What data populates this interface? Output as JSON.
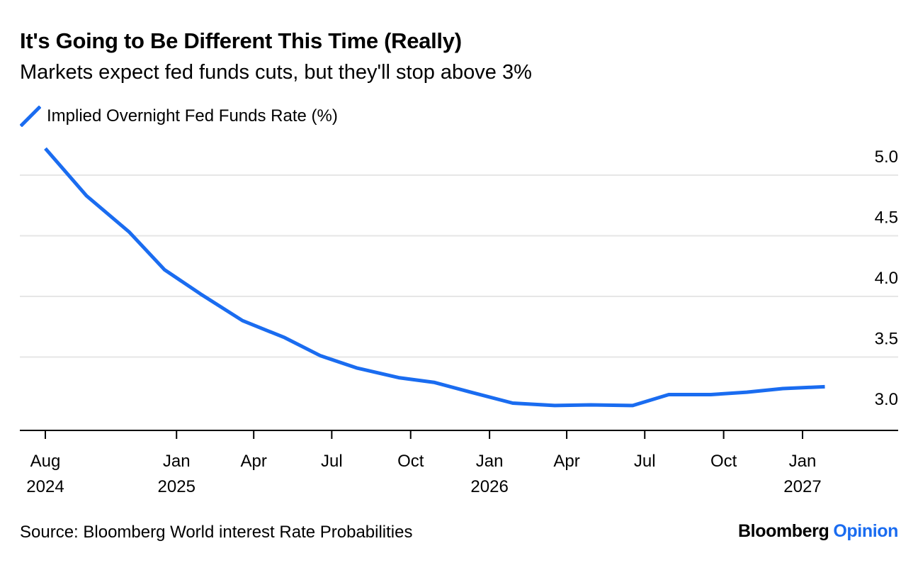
{
  "colors": {
    "series": "#1a6cf0",
    "grid": "#e6e6e6",
    "axis": "#000000",
    "brand_accent": "#1a6cf0"
  },
  "header": {
    "title": "It's Going to Be Different This Time (Really)",
    "subtitle": "Markets expect fed funds cuts, but they'll stop above 3%"
  },
  "footer": {
    "source": "Source: Bloomberg World interest Rate Probabilities",
    "brand_main": "Bloomberg",
    "brand_accent": "Opinion"
  },
  "chart_data": {
    "type": "line",
    "title": "It's Going to Be Different This Time (Really)",
    "subtitle": "Markets expect fed funds cuts, but they'll stop above 3%",
    "xlabel": "",
    "ylabel": "",
    "ylim": [
      2.85,
      5.35
    ],
    "xlim": [
      "2024-07-01",
      "2027-03-31"
    ],
    "yticks": [
      3.0,
      3.5,
      4.0,
      4.5,
      5.0
    ],
    "ytick_labels": [
      "3.0",
      "3.5",
      "4.0",
      "4.5",
      "5.0"
    ],
    "y_axis_position": "right",
    "grid": "horizontal",
    "legend": "top-left",
    "xticks": [
      {
        "date": "2024-08-01",
        "line1": "Aug",
        "line2": "2024"
      },
      {
        "date": "2025-01-01",
        "line1": "Jan",
        "line2": "2025"
      },
      {
        "date": "2025-04-01",
        "line1": "Apr",
        "line2": ""
      },
      {
        "date": "2025-07-01",
        "line1": "Jul",
        "line2": ""
      },
      {
        "date": "2025-10-01",
        "line1": "Oct",
        "line2": ""
      },
      {
        "date": "2026-01-01",
        "line1": "Jan",
        "line2": "2026"
      },
      {
        "date": "2026-04-01",
        "line1": "Apr",
        "line2": ""
      },
      {
        "date": "2026-07-01",
        "line1": "Jul",
        "line2": ""
      },
      {
        "date": "2026-10-01",
        "line1": "Oct",
        "line2": ""
      },
      {
        "date": "2027-01-01",
        "line1": "Jan",
        "line2": "2027"
      }
    ],
    "series": [
      {
        "name": "Implied Overnight Fed Funds Rate (%)",
        "color": "#1a6cf0",
        "points": [
          {
            "x": "2024-08-01",
            "y": 5.22
          },
          {
            "x": "2024-09-18",
            "y": 4.83
          },
          {
            "x": "2024-11-07",
            "y": 4.53
          },
          {
            "x": "2024-12-18",
            "y": 4.22
          },
          {
            "x": "2025-01-29",
            "y": 4.02
          },
          {
            "x": "2025-03-19",
            "y": 3.8
          },
          {
            "x": "2025-05-07",
            "y": 3.66
          },
          {
            "x": "2025-06-18",
            "y": 3.51
          },
          {
            "x": "2025-07-30",
            "y": 3.41
          },
          {
            "x": "2025-09-17",
            "y": 3.33
          },
          {
            "x": "2025-10-29",
            "y": 3.29
          },
          {
            "x": "2025-12-10",
            "y": 3.21
          },
          {
            "x": "2026-01-28",
            "y": 3.12
          },
          {
            "x": "2026-03-18",
            "y": 3.1
          },
          {
            "x": "2026-04-29",
            "y": 3.105
          },
          {
            "x": "2026-06-17",
            "y": 3.1
          },
          {
            "x": "2026-07-29",
            "y": 3.19
          },
          {
            "x": "2026-09-16",
            "y": 3.19
          },
          {
            "x": "2026-10-28",
            "y": 3.21
          },
          {
            "x": "2026-12-09",
            "y": 3.24
          },
          {
            "x": "2027-01-27",
            "y": 3.255
          }
        ]
      }
    ]
  }
}
